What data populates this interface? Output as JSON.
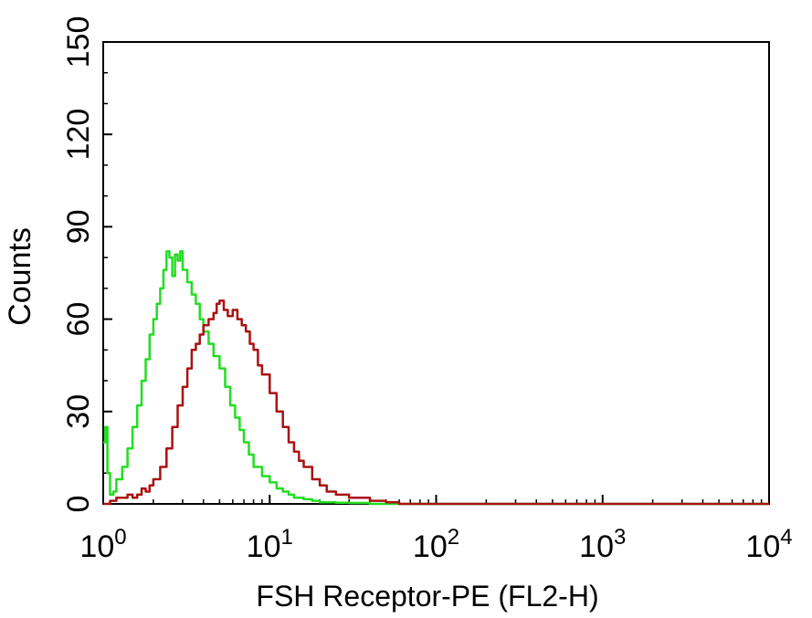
{
  "chart_data": {
    "type": "line",
    "xlabel": "FSH Receptor-PE (FL2-H)",
    "ylabel": "Counts",
    "xscale": "log",
    "xlim": [
      1,
      10000
    ],
    "ylim": [
      0,
      150
    ],
    "x_ticks": [
      {
        "value": 1,
        "base": "10",
        "exp": "0"
      },
      {
        "value": 10,
        "base": "10",
        "exp": "1"
      },
      {
        "value": 100,
        "base": "10",
        "exp": "2"
      },
      {
        "value": 1000,
        "base": "10",
        "exp": "3"
      },
      {
        "value": 10000,
        "base": "10",
        "exp": "4"
      }
    ],
    "y_ticks": [
      "0",
      "30",
      "60",
      "90",
      "120",
      "150"
    ],
    "y_tick_values": [
      0,
      30,
      60,
      90,
      120,
      150
    ],
    "grid": false,
    "legend": "none",
    "series": [
      {
        "color": "#22dd22",
        "x": [
          1.0,
          1.03,
          1.06,
          1.1,
          1.15,
          1.2,
          1.3,
          1.4,
          1.5,
          1.6,
          1.7,
          1.8,
          1.9,
          2.0,
          2.1,
          2.2,
          2.3,
          2.4,
          2.5,
          2.6,
          2.7,
          2.8,
          2.9,
          3.0,
          3.2,
          3.4,
          3.6,
          3.8,
          4.0,
          4.3,
          4.6,
          5.0,
          5.4,
          5.8,
          6.2,
          6.6,
          7.0,
          7.5,
          8.0,
          9.0,
          10.0,
          11.0,
          12.0,
          13.0,
          14.0,
          16.0,
          18.0,
          20.0,
          25.0,
          30.0,
          40.0,
          50.0,
          100.0,
          1000.0,
          10000.0
        ],
        "y": [
          20,
          25,
          10,
          3,
          4,
          8,
          12,
          18,
          25,
          32,
          40,
          47,
          55,
          60,
          65,
          70,
          76,
          82,
          80,
          74,
          81,
          79,
          82,
          76,
          72,
          68,
          65,
          60,
          56,
          52,
          48,
          44,
          38,
          32,
          28,
          24,
          20,
          16,
          12,
          9,
          7,
          5,
          4,
          3,
          2,
          1.5,
          1,
          0.5,
          0.4,
          0.3,
          0,
          0,
          0,
          0,
          0
        ]
      },
      {
        "color": "#aa1111",
        "x": [
          1.0,
          1.1,
          1.2,
          1.3,
          1.4,
          1.5,
          1.6,
          1.7,
          1.8,
          1.9,
          2.0,
          2.2,
          2.4,
          2.6,
          2.8,
          3.0,
          3.2,
          3.4,
          3.6,
          3.8,
          4.0,
          4.3,
          4.6,
          4.8,
          5.0,
          5.3,
          5.6,
          6.0,
          6.4,
          6.8,
          7.2,
          7.6,
          8.0,
          8.5,
          9.0,
          10.0,
          11.0,
          12.0,
          13.0,
          14.0,
          15.0,
          16.0,
          18.0,
          20.0,
          22.0,
          25.0,
          30.0,
          35.0,
          40.0,
          45.0,
          50.0,
          60.0,
          100.0,
          1000.0,
          10000.0
        ],
        "y": [
          0,
          1,
          2,
          2,
          3,
          2,
          3,
          5,
          4,
          6,
          8,
          12,
          18,
          25,
          32,
          38,
          44,
          50,
          52,
          55,
          58,
          60,
          62,
          65,
          66,
          63,
          61,
          63,
          60,
          58,
          56,
          52,
          50,
          45,
          42,
          36,
          30,
          25,
          20,
          17,
          14,
          12,
          8,
          6,
          4,
          3,
          2,
          2,
          1,
          1,
          0.5,
          0,
          0,
          0,
          0
        ]
      }
    ]
  }
}
